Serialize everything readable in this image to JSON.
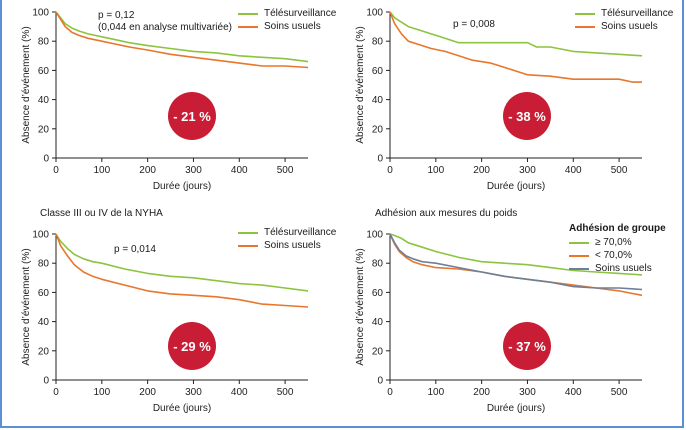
{
  "xlabel": "Durée (jours)",
  "ylabel": "Absence d’événement (%)",
  "colors": {
    "telesurveillance": "#8cc43f",
    "soins": "#e8762c",
    "over70": "#8cc43f",
    "under70": "#e8762c",
    "soins_gray": "#6d7f9a",
    "badge": "#c81d34"
  },
  "panels": [
    {
      "title": "",
      "pvalue_lines": [
        "p = 0,12",
        "(0,044 en analyse multivariée)"
      ],
      "badge": "- 21 %",
      "legend_title": "",
      "legend": [
        "Télésurveillance",
        "Soins usuels"
      ]
    },
    {
      "title": "",
      "pvalue_lines": [
        "p = 0,008"
      ],
      "badge": "- 38 %",
      "legend_title": "",
      "legend": [
        "Télésurveillance",
        "Soins usuels"
      ]
    },
    {
      "title": "Classe III ou IV de la NYHA",
      "pvalue_lines": [
        "p = 0,014"
      ],
      "badge": "- 29 %",
      "legend_title": "",
      "legend": [
        "Télésurveillance",
        "Soins usuels"
      ]
    },
    {
      "title": "Adhésion aux mesures du poids",
      "pvalue_lines": [],
      "badge": "- 37 %",
      "legend_title": "Adhésion de groupe",
      "legend": [
        "≥ 70,0%",
        "< 70,0%",
        "Soins usuels"
      ]
    }
  ],
  "chart_data": [
    {
      "type": "line",
      "xlabel": "Durée (jours)",
      "ylabel": "Absence d’événement (%)",
      "xlim": [
        0,
        550
      ],
      "ylim": [
        0,
        100
      ],
      "xticks": [
        0,
        100,
        200,
        300,
        400,
        500
      ],
      "yticks": [
        0,
        20,
        40,
        60,
        80,
        100
      ],
      "series": [
        {
          "name": "Télésurveillance",
          "x": [
            0,
            10,
            20,
            35,
            50,
            70,
            100,
            130,
            160,
            200,
            250,
            300,
            350,
            400,
            450,
            500,
            550
          ],
          "y": [
            100,
            96,
            92,
            89,
            87,
            85,
            83,
            81,
            79,
            77,
            75,
            73,
            72,
            70,
            69,
            68,
            66
          ]
        },
        {
          "name": "Soins usuels",
          "x": [
            0,
            10,
            20,
            35,
            50,
            70,
            100,
            130,
            160,
            200,
            250,
            300,
            350,
            400,
            450,
            500,
            550
          ],
          "y": [
            100,
            95,
            90,
            86,
            84,
            82,
            80,
            78,
            76,
            74,
            71,
            69,
            67,
            65,
            63,
            63,
            62
          ]
        }
      ]
    },
    {
      "type": "line",
      "xlabel": "Durée (jours)",
      "ylabel": "Absence d’événement (%)",
      "xlim": [
        0,
        550
      ],
      "ylim": [
        0,
        100
      ],
      "xticks": [
        0,
        100,
        200,
        300,
        400,
        500
      ],
      "yticks": [
        0,
        20,
        40,
        60,
        80,
        100
      ],
      "series": [
        {
          "name": "Télésurveillance",
          "x": [
            0,
            10,
            25,
            40,
            60,
            90,
            120,
            150,
            200,
            250,
            300,
            320,
            350,
            400,
            450,
            500,
            550
          ],
          "y": [
            100,
            96,
            93,
            90,
            88,
            85,
            82,
            79,
            79,
            79,
            79,
            76,
            76,
            73,
            72,
            71,
            70
          ]
        },
        {
          "name": "Soins usuels",
          "x": [
            0,
            10,
            25,
            40,
            60,
            90,
            120,
            150,
            180,
            220,
            260,
            300,
            350,
            400,
            450,
            500,
            530,
            550
          ],
          "y": [
            100,
            92,
            85,
            80,
            78,
            75,
            73,
            70,
            67,
            65,
            61,
            57,
            56,
            54,
            54,
            54,
            52,
            52
          ]
        }
      ]
    },
    {
      "type": "line",
      "xlabel": "Durée (jours)",
      "ylabel": "Absence d’événement (%)",
      "xlim": [
        0,
        550
      ],
      "ylim": [
        0,
        100
      ],
      "xticks": [
        0,
        100,
        200,
        300,
        400,
        500
      ],
      "yticks": [
        0,
        20,
        40,
        60,
        80,
        100
      ],
      "series": [
        {
          "name": "Télésurveillance",
          "x": [
            0,
            10,
            25,
            40,
            60,
            80,
            100,
            150,
            200,
            250,
            300,
            350,
            400,
            450,
            500,
            550
          ],
          "y": [
            100,
            95,
            90,
            86,
            83,
            81,
            80,
            76,
            73,
            71,
            70,
            68,
            66,
            65,
            63,
            61
          ]
        },
        {
          "name": "Soins usuels",
          "x": [
            0,
            10,
            25,
            40,
            60,
            80,
            100,
            150,
            200,
            250,
            300,
            350,
            400,
            450,
            500,
            550
          ],
          "y": [
            100,
            92,
            85,
            79,
            74,
            71,
            69,
            65,
            61,
            59,
            58,
            57,
            55,
            52,
            51,
            50
          ]
        }
      ]
    },
    {
      "type": "line",
      "xlabel": "Durée (jours)",
      "ylabel": "Absence d’événement (%)",
      "xlim": [
        0,
        550
      ],
      "ylim": [
        0,
        100
      ],
      "xticks": [
        0,
        100,
        200,
        300,
        400,
        500
      ],
      "yticks": [
        0,
        20,
        40,
        60,
        80,
        100
      ],
      "series": [
        {
          "name": "≥ 70,0%",
          "x": [
            0,
            10,
            25,
            40,
            60,
            100,
            150,
            200,
            250,
            300,
            350,
            400,
            450,
            500,
            550
          ],
          "y": [
            100,
            99,
            97,
            94,
            92,
            88,
            84,
            81,
            80,
            79,
            77,
            75,
            74,
            73,
            72
          ]
        },
        {
          "name": "< 70,0%",
          "x": [
            0,
            10,
            20,
            35,
            50,
            70,
            100,
            150,
            200,
            250,
            300,
            350,
            400,
            450,
            500,
            550
          ],
          "y": [
            100,
            93,
            88,
            84,
            81,
            79,
            77,
            76,
            74,
            71,
            69,
            67,
            65,
            63,
            61,
            58
          ]
        },
        {
          "name": "Soins usuels",
          "x": [
            0,
            10,
            20,
            35,
            50,
            70,
            100,
            150,
            200,
            250,
            300,
            350,
            400,
            450,
            500,
            550
          ],
          "y": [
            100,
            94,
            89,
            85,
            83,
            81,
            80,
            77,
            74,
            71,
            69,
            67,
            64,
            63,
            63,
            62
          ]
        }
      ]
    }
  ]
}
